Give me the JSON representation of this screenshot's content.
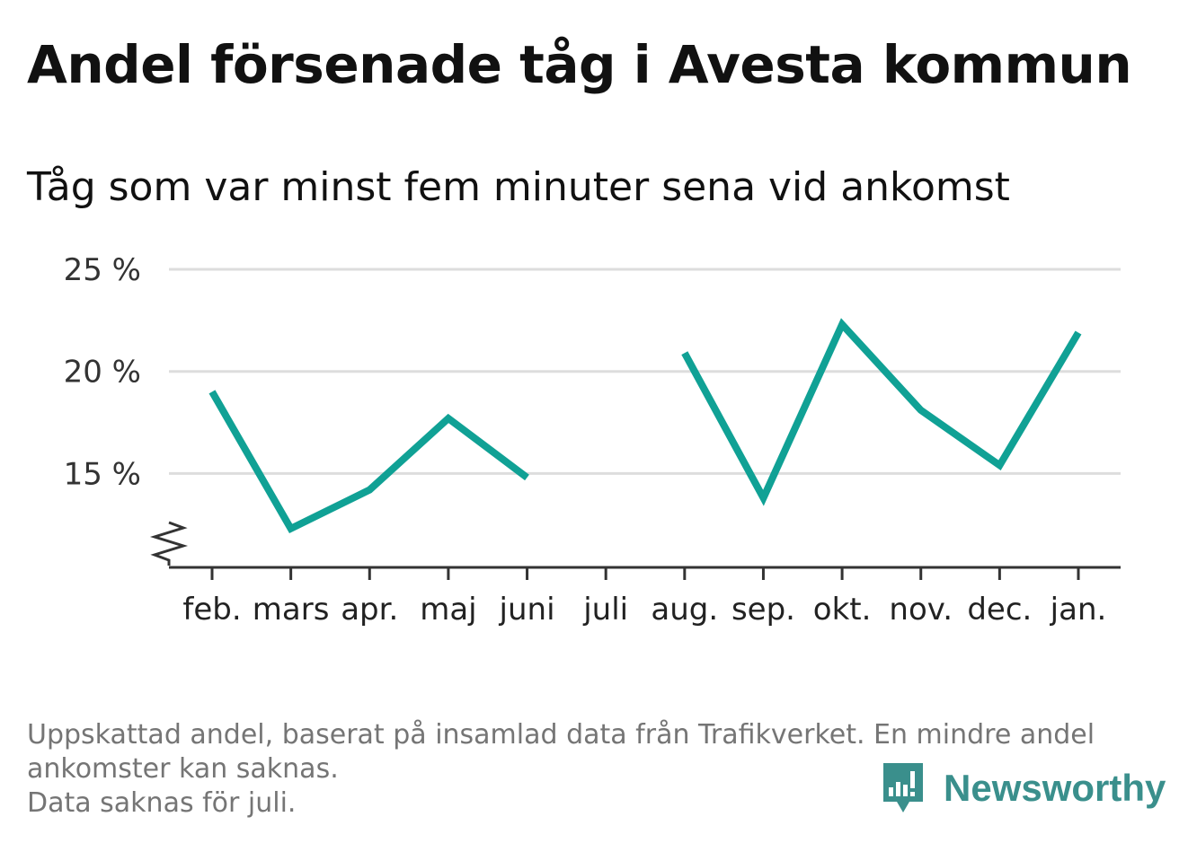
{
  "header": {
    "title": "Andel försenade tåg i Avesta kommun",
    "subtitle": "Tåg som var minst fem minuter sena vid ankomst"
  },
  "footer": {
    "note_line1": "Uppskattad andel, baserat på insamlad data från Trafikverket. En mindre andel",
    "note_line2": "ankomster kan saknas.",
    "note_line3": "Data saknas för juli.",
    "brand_name": "Newsworthy",
    "brand_icon": "newsworthy-logo-icon"
  },
  "chart_data": {
    "type": "line",
    "title": "Andel försenade tåg i Avesta kommun",
    "subtitle": "Tåg som var minst fem minuter sena vid ankomst",
    "categories": [
      "feb.",
      "mars",
      "apr.",
      "maj",
      "juni",
      "juli",
      "aug.",
      "sep.",
      "okt.",
      "nov.",
      "dec.",
      "jan."
    ],
    "series": [
      {
        "values": [
          19.0,
          12.3,
          14.2,
          17.7,
          14.8,
          null,
          20.9,
          13.8,
          22.3,
          18.1,
          15.4,
          21.9
        ],
        "color": "#10a195"
      }
    ],
    "y_ticks": [
      15,
      20,
      25
    ],
    "y_tick_labels": [
      "15 %",
      "20 %",
      "25 %"
    ],
    "ylim": [
      10.4,
      25
    ],
    "y_axis_break": true,
    "grid": true,
    "legend": "none",
    "colors": {
      "line": "#10a195",
      "grid": "#dddddd",
      "axis": "#333333"
    }
  }
}
